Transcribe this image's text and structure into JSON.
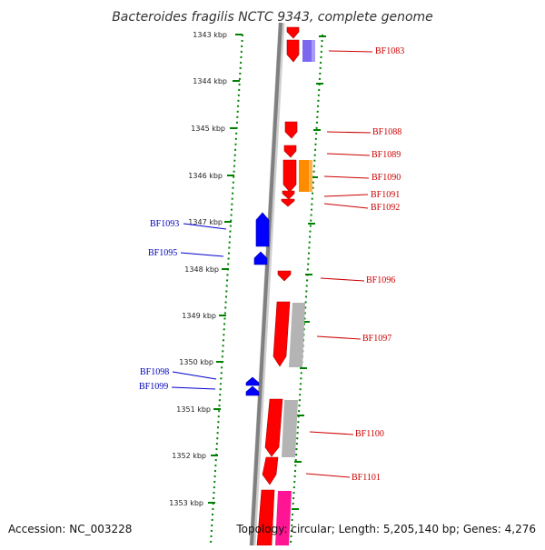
{
  "title": "Bacteroides fragilis NCTC 9343, complete genome",
  "footer": {
    "accession": "Accession: NC_003228",
    "topology": "Topology: circular; Length: 5,205,140 bp; Genes: 4,276"
  },
  "colors": {
    "forward": "#ff0000",
    "reverse": "#0000ff",
    "ruler": "#008000",
    "backbone": "#808080",
    "purple": "#7b68ee",
    "orange": "#ff8c00",
    "gray": "#b4b4b4",
    "pink": "#ff1493"
  },
  "ruler_ticks": [
    "1343 kbp",
    "1344 kbp",
    "1345 kbp",
    "1346 kbp",
    "1347 kbp",
    "1348 kbp",
    "1349 kbp",
    "1350 kbp",
    "1351 kbp",
    "1352 kbp",
    "1353 kbp"
  ],
  "forward_labels": [
    "BF1083",
    "BF1088",
    "BF1089",
    "BF1090",
    "BF1091",
    "BF1092",
    "BF1096",
    "BF1097",
    "BF1100",
    "BF1101"
  ],
  "reverse_labels": [
    "BF1093",
    "BF1095",
    "BF1098",
    "BF1099"
  ]
}
